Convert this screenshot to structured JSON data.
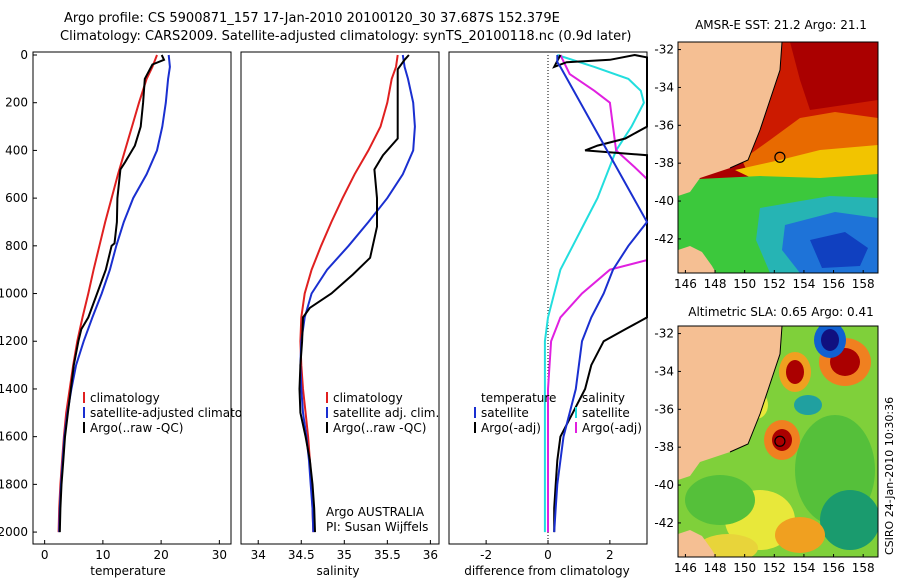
{
  "header": {
    "line1": "Argo profile: CS 5900871_157 17-Jan-2010 20100120_30 37.687S 152.379E",
    "line2": "Climatology: CARS2009. Satellite-adjusted climatology: synTS_20100118.nc (0.9d later)"
  },
  "colors": {
    "climatology": "#e02020",
    "satellite": "#1a2fd0",
    "argo": "#000000",
    "temperature_diff": "#22dede",
    "salinity_diff": "#e020e0",
    "land": "#f5bf93"
  },
  "chart_data": [
    {
      "type": "line",
      "id": "temperature",
      "xlabel": "temperature",
      "ylabel": "",
      "xlim": [
        -2,
        32
      ],
      "ylim": [
        2050,
        0
      ],
      "xticks": [
        0,
        10,
        20,
        30
      ],
      "yticks": [
        0,
        200,
        400,
        600,
        800,
        1000,
        1200,
        1400,
        1600,
        1800,
        2000
      ],
      "y_inverted": true,
      "legend": {
        "placement": "lower-right",
        "entries": [
          "climatology",
          "satellite-adjusted climatology",
          "Argo(..raw -QC)"
        ]
      },
      "series": [
        {
          "name": "climatology",
          "color_key": "climatology",
          "points": [
            [
              19.3,
              0
            ],
            [
              18.5,
              50
            ],
            [
              17.5,
              100
            ],
            [
              16.2,
              200
            ],
            [
              15,
              300
            ],
            [
              13.8,
              400
            ],
            [
              12.6,
              500
            ],
            [
              11.5,
              600
            ],
            [
              10.4,
              700
            ],
            [
              9.4,
              800
            ],
            [
              8.4,
              900
            ],
            [
              7.5,
              1000
            ],
            [
              6.5,
              1100
            ],
            [
              5.6,
              1200
            ],
            [
              4.9,
              1300
            ],
            [
              4.3,
              1400
            ],
            [
              3.7,
              1500
            ],
            [
              3.3,
              1600
            ],
            [
              3,
              1700
            ],
            [
              2.7,
              1800
            ],
            [
              2.5,
              1900
            ],
            [
              2.4,
              2000
            ]
          ]
        },
        {
          "name": "satellite-adjusted climatology",
          "color_key": "satellite",
          "points": [
            [
              21.3,
              0
            ],
            [
              21.5,
              50
            ],
            [
              21.2,
              100
            ],
            [
              20.8,
              200
            ],
            [
              20.2,
              300
            ],
            [
              19.3,
              400
            ],
            [
              17.5,
              500
            ],
            [
              15.2,
              600
            ],
            [
              13.6,
              700
            ],
            [
              12.3,
              800
            ],
            [
              11.2,
              900
            ],
            [
              9.8,
              1000
            ],
            [
              8.2,
              1100
            ],
            [
              6.7,
              1200
            ],
            [
              5.4,
              1300
            ],
            [
              4.6,
              1400
            ],
            [
              3.9,
              1500
            ],
            [
              3.4,
              1600
            ],
            [
              3.1,
              1700
            ],
            [
              2.8,
              1800
            ],
            [
              2.6,
              1900
            ],
            [
              2.5,
              2000
            ]
          ]
        },
        {
          "name": "Argo(..raw -QC)",
          "color_key": "argo",
          "points": [
            [
              20.1,
              0
            ],
            [
              20.3,
              10
            ],
            [
              20.5,
              20
            ],
            [
              18.5,
              40
            ],
            [
              17.2,
              100
            ],
            [
              16.9,
              200
            ],
            [
              16.5,
              300
            ],
            [
              15.5,
              380
            ],
            [
              13.8,
              450
            ],
            [
              13.0,
              480
            ],
            [
              12.5,
              600
            ],
            [
              12.4,
              700
            ],
            [
              12.0,
              790
            ],
            [
              11.5,
              800
            ],
            [
              10.5,
              900
            ],
            [
              9,
              1000
            ],
            [
              7.5,
              1100
            ],
            [
              6.3,
              1150
            ],
            [
              5.8,
              1200
            ],
            [
              5.0,
              1300
            ],
            [
              4.5,
              1400
            ],
            [
              4.0,
              1500
            ],
            [
              3.5,
              1600
            ],
            [
              3.2,
              1700
            ],
            [
              2.9,
              1800
            ],
            [
              2.7,
              1900
            ],
            [
              2.6,
              2000
            ]
          ]
        }
      ]
    },
    {
      "type": "line",
      "id": "salinity",
      "xlabel": "salinity",
      "ylabel": "",
      "xlim": [
        33.8,
        36.1
      ],
      "ylim": [
        2050,
        0
      ],
      "xticks": [
        34,
        34.5,
        35,
        35.5,
        36
      ],
      "y_inverted": true,
      "legend": {
        "placement": "lower-right",
        "entries": [
          "climatology",
          "satellite adj. clim.",
          "Argo(..raw -QC)"
        ]
      },
      "annotation": [
        "Argo AUSTRALIA",
        "PI: Susan Wijffels"
      ],
      "series": [
        {
          "name": "climatology",
          "color_key": "climatology",
          "points": [
            [
              35.62,
              0
            ],
            [
              35.6,
              50
            ],
            [
              35.55,
              100
            ],
            [
              35.5,
              200
            ],
            [
              35.42,
              300
            ],
            [
              35.28,
              400
            ],
            [
              35.12,
              500
            ],
            [
              34.98,
              600
            ],
            [
              34.85,
              700
            ],
            [
              34.73,
              800
            ],
            [
              34.62,
              900
            ],
            [
              34.54,
              1000
            ],
            [
              34.5,
              1100
            ],
            [
              34.49,
              1200
            ],
            [
              34.5,
              1300
            ],
            [
              34.52,
              1400
            ],
            [
              34.55,
              1500
            ],
            [
              34.58,
              1600
            ],
            [
              34.6,
              1700
            ],
            [
              34.62,
              1800
            ],
            [
              34.63,
              1900
            ],
            [
              34.64,
              2000
            ]
          ]
        },
        {
          "name": "satellite adj. clim.",
          "color_key": "satellite",
          "points": [
            [
              35.68,
              0
            ],
            [
              35.7,
              50
            ],
            [
              35.74,
              100
            ],
            [
              35.8,
              200
            ],
            [
              35.82,
              300
            ],
            [
              35.8,
              400
            ],
            [
              35.68,
              500
            ],
            [
              35.5,
              600
            ],
            [
              35.28,
              700
            ],
            [
              35.05,
              800
            ],
            [
              34.8,
              900
            ],
            [
              34.62,
              1000
            ],
            [
              34.54,
              1100
            ],
            [
              34.5,
              1200
            ],
            [
              34.49,
              1300
            ],
            [
              34.5,
              1400
            ],
            [
              34.52,
              1500
            ],
            [
              34.56,
              1600
            ],
            [
              34.59,
              1700
            ],
            [
              34.61,
              1800
            ],
            [
              34.63,
              1900
            ],
            [
              34.64,
              2000
            ]
          ]
        },
        {
          "name": "Argo(..raw -QC)",
          "color_key": "argo",
          "points": [
            [
              35.75,
              0
            ],
            [
              35.7,
              20
            ],
            [
              35.62,
              60
            ],
            [
              35.62,
              200
            ],
            [
              35.62,
              350
            ],
            [
              35.45,
              420
            ],
            [
              35.35,
              480
            ],
            [
              35.38,
              600
            ],
            [
              35.38,
              720
            ],
            [
              35.3,
              850
            ],
            [
              35.1,
              920
            ],
            [
              34.85,
              1000
            ],
            [
              34.6,
              1060
            ],
            [
              34.52,
              1100
            ],
            [
              34.51,
              1200
            ],
            [
              34.49,
              1300
            ],
            [
              34.48,
              1400
            ],
            [
              34.49,
              1500
            ],
            [
              34.55,
              1600
            ],
            [
              34.6,
              1700
            ],
            [
              34.63,
              1800
            ],
            [
              34.65,
              1900
            ],
            [
              34.66,
              2000
            ]
          ]
        }
      ]
    },
    {
      "type": "line",
      "id": "difference",
      "xlabel": "difference from climatology",
      "ylabel": "",
      "xlim": [
        -3.2,
        3.2
      ],
      "ylim": [
        2050,
        0
      ],
      "xticks": [
        -2,
        0,
        2
      ],
      "y_inverted": true,
      "legend": {
        "placement": "lower-center",
        "temperature_label": "temperature",
        "salinity_label": "salinity",
        "entries": [
          "satellite",
          "Argo(-adj)",
          "satellite",
          "Argo(-adj)"
        ]
      },
      "series": [
        {
          "name": "temperature satellite",
          "color_key": "temperature_diff",
          "points": [
            [
              0.3,
              0
            ],
            [
              1.5,
              50
            ],
            [
              2.6,
              100
            ],
            [
              3.0,
              150
            ],
            [
              3.1,
              200
            ],
            [
              2.7,
              300
            ],
            [
              2.2,
              400
            ],
            [
              1.9,
              500
            ],
            [
              1.6,
              600
            ],
            [
              1.2,
              700
            ],
            [
              0.8,
              800
            ],
            [
              0.4,
              900
            ],
            [
              0.2,
              1000
            ],
            [
              0,
              1100
            ],
            [
              -0.1,
              1200
            ],
            [
              -0.1,
              1400
            ],
            [
              -0.1,
              1600
            ],
            [
              -0.1,
              1800
            ],
            [
              -0.1,
              2000
            ]
          ]
        },
        {
          "name": "salinity satellite",
          "color_key": "salinity_diff",
          "points": [
            [
              0.4,
              0
            ],
            [
              0.7,
              80
            ],
            [
              1.5,
              150
            ],
            [
              2.0,
              200
            ],
            [
              2.1,
              300
            ],
            [
              2.2,
              400
            ],
            [
              2.8,
              470
            ],
            [
              3.2,
              520
            ],
            [
              3.2,
              860
            ],
            [
              2.0,
              900
            ],
            [
              1.1,
              1000
            ],
            [
              0.4,
              1100
            ],
            [
              0.1,
              1200
            ],
            [
              0,
              1400
            ],
            [
              0,
              1600
            ],
            [
              0,
              1800
            ],
            [
              0,
              2000
            ]
          ]
        },
        {
          "name": "temperature Argo(-adj)",
          "color_key": "argo",
          "points": [
            [
              0.4,
              0
            ],
            [
              0.2,
              50
            ],
            [
              0.6,
              30
            ],
            [
              2.0,
              20
            ],
            [
              2.8,
              0
            ],
            [
              3.2,
              10
            ],
            [
              3.2,
              300
            ],
            [
              2.5,
              350
            ],
            [
              1.6,
              380
            ],
            [
              1.2,
              400
            ],
            [
              3.2,
              420
            ],
            [
              3.2,
              1100
            ],
            [
              2.5,
              1150
            ],
            [
              1.8,
              1200
            ],
            [
              1.4,
              1300
            ],
            [
              1.2,
              1400
            ],
            [
              0.8,
              1500
            ],
            [
              0.4,
              1600
            ],
            [
              0.3,
              1700
            ],
            [
              0.25,
              1800
            ],
            [
              0.2,
              1900
            ],
            [
              0.2,
              2000
            ]
          ]
        },
        {
          "name": "salinity Argo(-adj)",
          "color_key": "satellite",
          "points": [
            [
              0.3,
              0
            ],
            [
              0.3,
              30
            ],
            [
              0.4,
              50
            ],
            [
              3.2,
              700
            ],
            [
              2.6,
              800
            ],
            [
              2.1,
              900
            ],
            [
              1.8,
              1000
            ],
            [
              1.4,
              1100
            ],
            [
              1.1,
              1200
            ],
            [
              1.0,
              1300
            ],
            [
              0.9,
              1400
            ],
            [
              0.7,
              1500
            ],
            [
              0.5,
              1600
            ],
            [
              0.4,
              1700
            ],
            [
              0.3,
              1800
            ],
            [
              0.25,
              1900
            ],
            [
              0.2,
              2000
            ]
          ]
        }
      ]
    }
  ],
  "maps": [
    {
      "id": "sst-map",
      "title": "AMSR-E SST: 21.2 Argo: 21.1",
      "xlim": [
        145.5,
        159
      ],
      "ylim": [
        -43.8,
        -31.6
      ],
      "xticks": [
        146,
        148,
        150,
        152,
        154,
        156,
        158
      ],
      "yticks": [
        -32,
        -34,
        -36,
        -38,
        -40,
        -42
      ],
      "float_position": {
        "lon": 152.379,
        "lat": -37.687
      }
    },
    {
      "id": "sla-map",
      "title": "Altimetric SLA: 0.65 Argo: 0.41",
      "xlim": [
        145.5,
        159
      ],
      "ylim": [
        -43.8,
        -31.6
      ],
      "xticks": [
        146,
        148,
        150,
        152,
        154,
        156,
        158
      ],
      "yticks": [
        -32,
        -34,
        -36,
        -38,
        -40,
        -42
      ],
      "float_position": {
        "lon": 152.379,
        "lat": -37.687
      }
    }
  ],
  "footer": {
    "timestamp": "CSIRO 24-Jan-2010 10:30:36"
  }
}
